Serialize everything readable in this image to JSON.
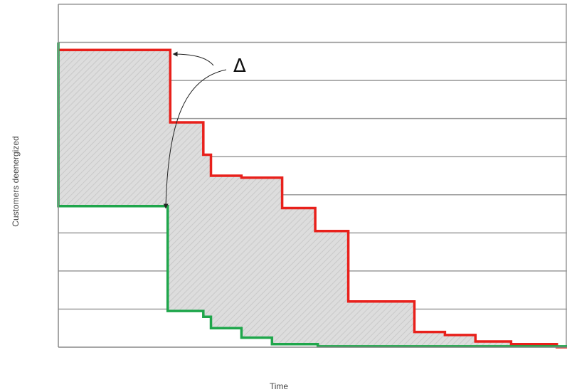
{
  "chart_data": {
    "type": "line",
    "xlabel": "Time",
    "ylabel": "Customers deenergized",
    "annotation": "Δ",
    "grid": true,
    "shaded_between_series": true,
    "series": [
      {
        "color": "#e8201b",
        "points": [
          [
            0,
            7.8
          ],
          [
            2.2,
            7.8
          ],
          [
            2.2,
            5.9
          ],
          [
            2.85,
            5.9
          ],
          [
            2.85,
            5.05
          ],
          [
            3.0,
            5.05
          ],
          [
            3.0,
            4.5
          ],
          [
            3.6,
            4.5
          ],
          [
            3.6,
            4.45
          ],
          [
            4.4,
            4.45
          ],
          [
            4.4,
            3.65
          ],
          [
            5.05,
            3.65
          ],
          [
            5.05,
            3.05
          ],
          [
            5.7,
            3.05
          ],
          [
            5.7,
            1.2
          ],
          [
            7.0,
            1.2
          ],
          [
            7.0,
            0.4
          ],
          [
            7.6,
            0.4
          ],
          [
            7.6,
            0.32
          ],
          [
            8.2,
            0.32
          ],
          [
            8.2,
            0.15
          ],
          [
            8.9,
            0.15
          ],
          [
            8.9,
            0.08
          ],
          [
            9.8,
            0.08
          ],
          [
            9.8,
            0.0
          ],
          [
            10,
            0.0
          ]
        ]
      },
      {
        "color": "#1fa64b",
        "points": [
          [
            0,
            8.0
          ],
          [
            0,
            3.7
          ],
          [
            2.15,
            3.7
          ],
          [
            2.15,
            0.95
          ],
          [
            2.85,
            0.95
          ],
          [
            2.85,
            0.8
          ],
          [
            3.0,
            0.8
          ],
          [
            3.0,
            0.5
          ],
          [
            3.6,
            0.5
          ],
          [
            3.6,
            0.25
          ],
          [
            4.2,
            0.25
          ],
          [
            4.2,
            0.08
          ],
          [
            5.1,
            0.08
          ],
          [
            5.1,
            0.02
          ],
          [
            10,
            0.02
          ],
          [
            10,
            0.0
          ]
        ]
      }
    ],
    "xlim": [
      0,
      10
    ],
    "ylim": [
      0,
      9
    ]
  },
  "colors": {
    "grid": "#9a9a9a",
    "fill": "#dedede",
    "axis": "#888888"
  }
}
